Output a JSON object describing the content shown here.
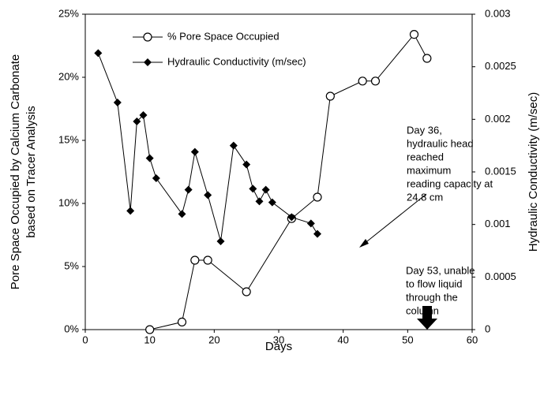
{
  "chart_data": {
    "type": "line",
    "xlabel": "Days",
    "ylabel": [
      "Pore Space Occupied by Calcium Carbonate",
      "based on Tracer Analysis"
    ],
    "y2label": "Hydraulic Conductivity (m/sec)",
    "xlim": [
      0,
      60
    ],
    "xticks": [
      0,
      10,
      20,
      30,
      40,
      50,
      60
    ],
    "ylim": [
      0,
      25
    ],
    "yticks": [
      {
        "value": 0,
        "label": "0%"
      },
      {
        "value": 5,
        "label": "5%"
      },
      {
        "value": 10,
        "label": "10%"
      },
      {
        "value": 15,
        "label": "15%"
      },
      {
        "value": 20,
        "label": "20%"
      },
      {
        "value": 25,
        "label": "25%"
      }
    ],
    "y2lim": [
      0,
      0.003
    ],
    "y2ticks": [
      0,
      0.0005,
      0.001,
      0.0015,
      0.002,
      0.0025,
      0.003
    ],
    "legend": "top",
    "series": [
      {
        "name": "% Pore Space Occupied",
        "color": "#000000",
        "marker": "circle",
        "x": [
          10,
          15,
          17,
          19,
          25,
          32,
          36,
          38,
          43,
          45,
          51,
          53
        ],
        "values": [
          0,
          0.6,
          5.5,
          5.5,
          3,
          8.8,
          10.5,
          18.5,
          19.7,
          19.7,
          23.4,
          21.5
        ]
      },
      {
        "name": "Hydraulic Conductivity (m/sec)",
        "color": "#000000",
        "marker": "diamond",
        "axis": "y2",
        "x": [
          2,
          5,
          7,
          8,
          9,
          10,
          11,
          15,
          16,
          17,
          19,
          21,
          23,
          25,
          26,
          27,
          28,
          29,
          32,
          35,
          36
        ],
        "values": [
          0.00263,
          0.00216,
          0.00113,
          0.00198,
          0.00204,
          0.00163,
          0.00144,
          0.0011,
          0.00133,
          0.00169,
          0.00128,
          0.00084,
          0.00175,
          0.00157,
          0.00134,
          0.00122,
          0.00133,
          0.00121,
          0.00107,
          0.00101,
          0.00091
        ]
      }
    ],
    "annotations": [
      {
        "lines": [
          "Day 36,",
          "hydraulic head",
          "reached",
          "maximum",
          "reading capacity at",
          "24.8 cm"
        ]
      },
      {
        "lines": [
          "Day 53, unable",
          "to flow liquid",
          "through the",
          "column"
        ]
      }
    ]
  }
}
